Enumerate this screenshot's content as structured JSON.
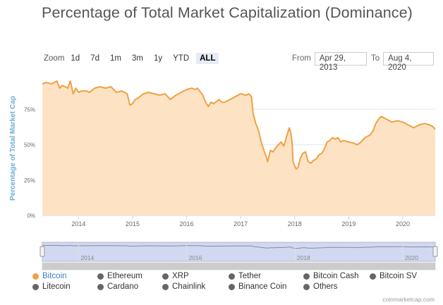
{
  "title": "Percentage of Total Market Capitalization (Dominance)",
  "zoom": {
    "label": "Zoom",
    "buttons": [
      "1d",
      "7d",
      "1m",
      "3m",
      "1y",
      "YTD",
      "ALL"
    ],
    "active": "ALL"
  },
  "range": {
    "from_label": "From",
    "from_value": "Apr 29, 2013",
    "to_label": "To",
    "to_value": "Aug 4, 2020"
  },
  "credit": "coinmarketcap.com",
  "colors": {
    "series": "#f0a044",
    "fill": "#fde3c3",
    "grid": "#e6e6e6",
    "axis_label": "#6aaed6",
    "navigator_mask": "#c8d2ee"
  },
  "chart_data": {
    "type": "area",
    "title": "Percentage of Total Market Capitalization (Dominance)",
    "ylabel": "Percentage of Total Market Cap",
    "xlabel": "",
    "ylim": [
      0,
      100
    ],
    "yticks": [
      "0%",
      "25%",
      "50%",
      "75%"
    ],
    "ytick_values": [
      0,
      25,
      50,
      75
    ],
    "xlim": [
      2013.33,
      2020.6
    ],
    "xticks": [
      "2014",
      "2015",
      "2016",
      "2017",
      "2018",
      "2019",
      "2020"
    ],
    "xtick_values": [
      2014,
      2015,
      2016,
      2017,
      2018,
      2019,
      2020
    ],
    "grid": true,
    "series": [
      {
        "name": "Bitcoin",
        "x": [
          2013.33,
          2013.4,
          2013.5,
          2013.6,
          2013.65,
          2013.7,
          2013.8,
          2013.85,
          2013.9,
          2013.95,
          2014.0,
          2014.05,
          2014.15,
          2014.2,
          2014.3,
          2014.4,
          2014.5,
          2014.6,
          2014.7,
          2014.8,
          2014.9,
          2014.95,
          2015.0,
          2015.05,
          2015.1,
          2015.2,
          2015.3,
          2015.4,
          2015.5,
          2015.6,
          2015.7,
          2015.8,
          2015.9,
          2016.0,
          2016.1,
          2016.15,
          2016.2,
          2016.3,
          2016.35,
          2016.4,
          2016.45,
          2016.5,
          2016.6,
          2016.65,
          2016.7,
          2016.8,
          2016.9,
          2017.0,
          2017.1,
          2017.15,
          2017.2,
          2017.23,
          2017.28,
          2017.33,
          2017.38,
          2017.43,
          2017.47,
          2017.5,
          2017.55,
          2017.6,
          2017.65,
          2017.7,
          2017.75,
          2017.8,
          2017.85,
          2017.9,
          2017.93,
          2017.95,
          2017.97,
          2018.0,
          2018.03,
          2018.06,
          2018.1,
          2018.15,
          2018.2,
          2018.25,
          2018.3,
          2018.35,
          2018.4,
          2018.45,
          2018.5,
          2018.55,
          2018.6,
          2018.65,
          2018.7,
          2018.75,
          2018.8,
          2018.85,
          2018.9,
          2019.0,
          2019.1,
          2019.15,
          2019.2,
          2019.3,
          2019.35,
          2019.4,
          2019.45,
          2019.5,
          2019.55,
          2019.6,
          2019.7,
          2019.8,
          2019.9,
          2020.0,
          2020.1,
          2020.2,
          2020.3,
          2020.4,
          2020.5,
          2020.55,
          2020.6
        ],
        "values": [
          93,
          94,
          93,
          95,
          90,
          92,
          90,
          95,
          86,
          90,
          87,
          88,
          88,
          87,
          90,
          91,
          90,
          91,
          87,
          88,
          86,
          78,
          79,
          82,
          83,
          86,
          87,
          86,
          85,
          86,
          82,
          85,
          87,
          89,
          90,
          89,
          90,
          85,
          80,
          77,
          80,
          79,
          82,
          80,
          80,
          82,
          84,
          86,
          85,
          86,
          84,
          72,
          65,
          60,
          52,
          46,
          42,
          38,
          46,
          45,
          48,
          50,
          52,
          49,
          56,
          62,
          58,
          52,
          38,
          35,
          33,
          34,
          40,
          44,
          45,
          38,
          37,
          39,
          40,
          43,
          44,
          47,
          52,
          53,
          55,
          54,
          55,
          52,
          53,
          52,
          51,
          50,
          51,
          55,
          56,
          57,
          60,
          65,
          68,
          70,
          68,
          66,
          67,
          66,
          64,
          62,
          64,
          65,
          64,
          63,
          61
        ]
      }
    ],
    "legend": {
      "placement": "bottom",
      "entries": [
        "Bitcoin",
        "Ethereum",
        "XRP",
        "Tether",
        "Bitcoin Cash",
        "Bitcoin SV",
        "Litecoin",
        "Cardano",
        "Chainlink",
        "Binance Coin",
        "Others"
      ],
      "active": [
        "Bitcoin"
      ]
    },
    "navigator": {
      "xticks": [
        "2014",
        "2016",
        "2018",
        "2020"
      ],
      "xtick_values": [
        2014,
        2016,
        2018,
        2020
      ],
      "range": [
        2013.33,
        2020.6
      ]
    }
  }
}
